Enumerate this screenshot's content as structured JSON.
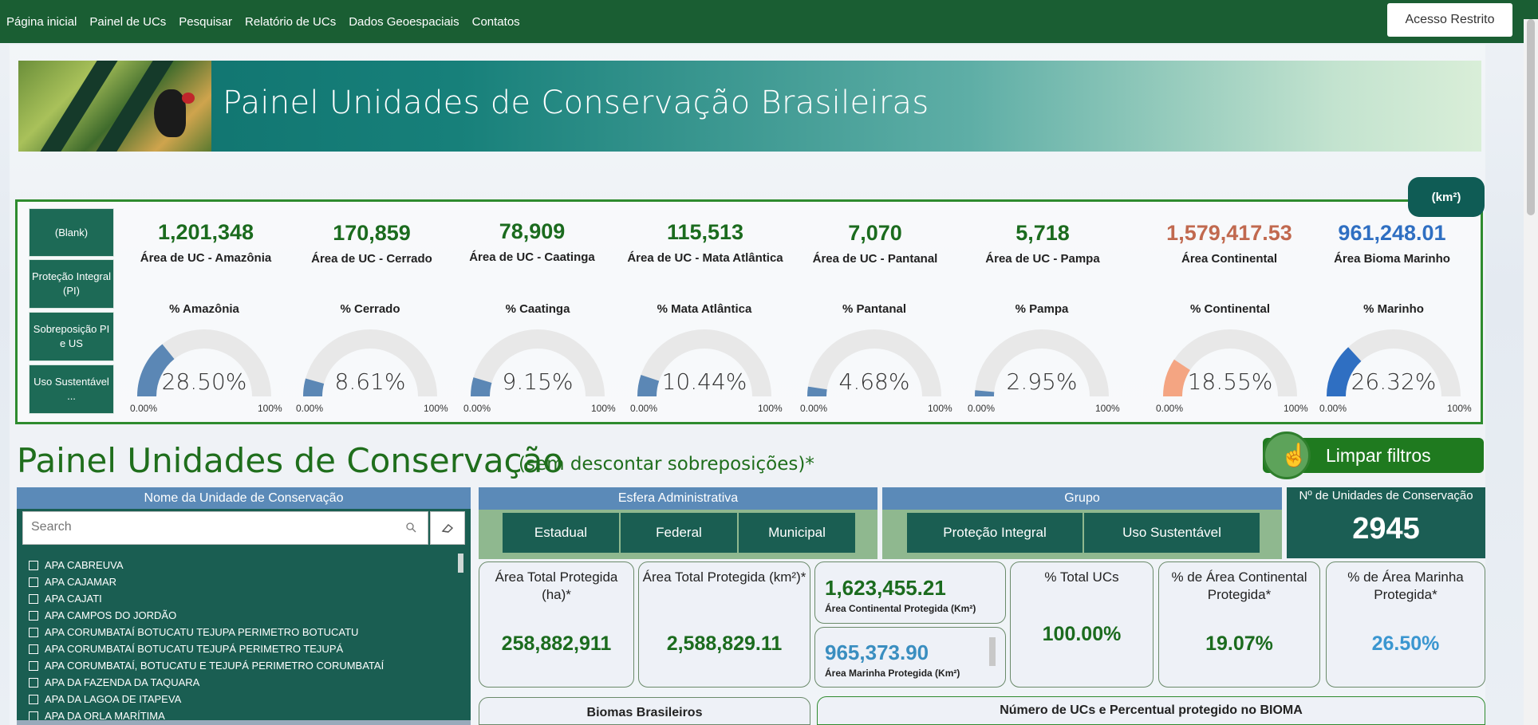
{
  "nav": {
    "links": [
      "Página inicial",
      "Painel de UCs",
      "Pesquisar",
      "Relatório de UCs",
      "Dados Geoespaciais",
      "Contatos"
    ],
    "login_label": "Acesso Restrito"
  },
  "banner": {
    "title": "Painel Unidades de Conservação Brasileiras"
  },
  "unit_badge": "(km²)",
  "slicer": [
    "(Blank)",
    "Proteção Integral (PI)",
    "Sobreposição PI e US",
    "Uso Sustentável ..."
  ],
  "kpis": [
    {
      "value": "1,201,348",
      "label": "Área de UC - Amazônia",
      "color": "#1b6b1e"
    },
    {
      "value": "170,859",
      "label": "Área de UC - Cerrado",
      "color": "#1b6b1e"
    },
    {
      "value": "78,909",
      "label": "Área de UC - Caatinga",
      "color": "#1b6b1e"
    },
    {
      "value": "115,513",
      "label": "Área de UC - Mata Atlântica",
      "color": "#1b6b1e"
    },
    {
      "value": "7,070",
      "label": "Área de UC - Pantanal",
      "color": "#1b6b1e"
    },
    {
      "value": "5,718",
      "label": "Área de UC - Pampa",
      "color": "#1b6b1e"
    },
    {
      "value": "1,579,417.53",
      "label": "Área Continental",
      "color": "#c1694f"
    },
    {
      "value": "961,248.01",
      "label": "Área Bioma Marinho",
      "color": "#2f6fc2"
    }
  ],
  "gauges": [
    {
      "title": "% Amazônia",
      "value_text": "28.50%",
      "fraction": 0.285,
      "color": "#5b87b5",
      "min": "0.00%",
      "max": "100%"
    },
    {
      "title": "% Cerrado",
      "value_text": "8.61%",
      "fraction": 0.0861,
      "color": "#5b87b5",
      "min": "0.00%",
      "max": "100%"
    },
    {
      "title": "% Caatinga",
      "value_text": "9.15%",
      "fraction": 0.0915,
      "color": "#5b87b5",
      "min": "0.00%",
      "max": "100%"
    },
    {
      "title": "% Mata Atlântica",
      "value_text": "10.44%",
      "fraction": 0.1044,
      "color": "#5b87b5",
      "min": "0.00%",
      "max": "100%"
    },
    {
      "title": "% Pantanal",
      "value_text": "4.68%",
      "fraction": 0.0468,
      "color": "#5b87b5",
      "min": "0.00%",
      "max": "100%"
    },
    {
      "title": "% Pampa",
      "value_text": "2.95%",
      "fraction": 0.0295,
      "color": "#5b87b5",
      "min": "0.00%",
      "max": "100%"
    },
    {
      "title": "% Continental",
      "value_text": "18.55%",
      "fraction": 0.1855,
      "color": "#f4a582",
      "min": "0.00%",
      "max": "100%"
    },
    {
      "title": "% Marinho",
      "value_text": "26.32%",
      "fraction": 0.2632,
      "color": "#2f6fc2",
      "min": "0.00%",
      "max": "100%"
    }
  ],
  "section": {
    "title": "Painel Unidades de Conservação",
    "subtitle": "(sem descontar sobreposições)*"
  },
  "clear_filters_label": "Limpar filtros",
  "uc_panel": {
    "header": "Nome da Unidade de Conservação",
    "search_placeholder": "Search",
    "items": [
      "APA CABREUVA",
      "APA CAJAMAR",
      "APA CAJATI",
      "APA CAMPOS DO JORDÃO",
      "APA CORUMBATAÍ BOTUCATU TEJUPA PERIMETRO BOTUCATU",
      "APA CORUMBATAÍ BOTUCATU TEJUPÁ PERIMETRO TEJUPÁ",
      "APA CORUMBATAÍ, BOTUCATU E TEJUPÁ PERIMETRO CORUMBATAÍ",
      "APA DA FAZENDA DA TAQUARA",
      "APA DA LAGOA DE ITAPEVA",
      "APA DA ORLA MARÍTIMA"
    ]
  },
  "esfera": {
    "header": "Esfera Administrativa",
    "options": [
      "Estadual",
      "Federal",
      "Municipal"
    ]
  },
  "grupo": {
    "header": "Grupo",
    "options": [
      "Proteção Integral",
      "Uso Sustentável"
    ]
  },
  "n_ucs": {
    "label": "Nº de Unidades de Conservação",
    "value": "2945"
  },
  "cards": {
    "area_ha": {
      "label": "Área Total Protegida (ha)*",
      "value": "258,882,911"
    },
    "area_km2": {
      "label": "Área Total Protegida (km²)*",
      "value": "2,588,829.11"
    },
    "continental": {
      "value": "1,623,455.21",
      "label": "Área Continental Protegida (Km²)"
    },
    "marinha": {
      "value": "965,373.90",
      "label": "Área Marinha Protegida (Km²)"
    },
    "total_ucs": {
      "label": "% Total UCs",
      "value": "100.00%"
    },
    "pct_continental": {
      "label": "% de Área Continental Protegida*",
      "value": "19.07%"
    },
    "pct_marinha": {
      "label": "% de Área Marinha Protegida*",
      "value": "26.50%"
    }
  },
  "bottom": {
    "biomas": "Biomas Brasileiros",
    "numero": "Número de UCs e Percentual protegido no BIOMA"
  }
}
